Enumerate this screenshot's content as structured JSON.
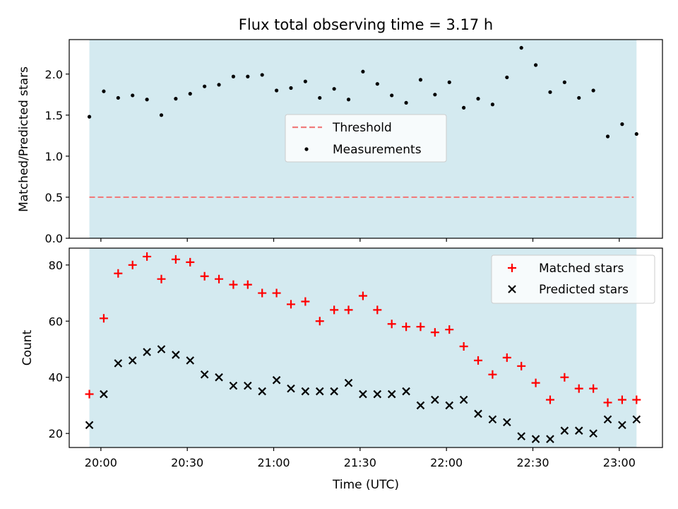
{
  "colors": {
    "shade": "#d4eaf0",
    "threshold": "#f07c7c",
    "matched": "#ff0000",
    "predicted": "#000000",
    "measurement": "#000000"
  },
  "chart_data": [
    {
      "type": "scatter",
      "title": "Flux total observing time = 3.17 h",
      "xlabel": "",
      "ylabel": "Matched/Predicted stars",
      "ylim": [
        0,
        2.42
      ],
      "yticks": [
        "0.0",
        "0.5",
        "1.0",
        "1.5",
        "2.0"
      ],
      "xlim": [
        "19:49",
        "23:15"
      ],
      "shaded_span": [
        "19:56",
        "23:06"
      ],
      "threshold": {
        "name": "Threshold",
        "value": 0.5,
        "x_range": [
          "19:56",
          "23:05"
        ]
      },
      "series": [
        {
          "name": "Measurements",
          "x": [
            "19:56",
            "20:01",
            "20:06",
            "20:11",
            "20:16",
            "20:21",
            "20:26",
            "20:31",
            "20:36",
            "20:41",
            "20:46",
            "20:51",
            "20:56",
            "21:01",
            "21:06",
            "21:11",
            "21:16",
            "21:21",
            "21:26",
            "21:31",
            "21:36",
            "21:41",
            "21:46",
            "21:51",
            "21:56",
            "22:01",
            "22:06",
            "22:11",
            "22:16",
            "22:21",
            "22:26",
            "22:31",
            "22:36",
            "22:41",
            "22:46",
            "22:51",
            "22:56",
            "23:01",
            "23:06"
          ],
          "y": [
            1.48,
            1.79,
            1.71,
            1.74,
            1.69,
            1.5,
            1.7,
            1.76,
            1.85,
            1.87,
            1.97,
            1.97,
            1.99,
            1.8,
            1.83,
            1.91,
            1.71,
            1.82,
            1.69,
            2.03,
            1.88,
            1.74,
            1.65,
            1.93,
            1.75,
            1.9,
            1.59,
            1.7,
            1.63,
            1.96,
            2.32,
            2.11,
            1.78,
            1.9,
            1.71,
            1.8,
            1.24,
            1.39,
            1.27
          ]
        }
      ]
    },
    {
      "type": "scatter",
      "title": "",
      "xlabel": "Time (UTC)",
      "ylabel": "Count",
      "ylim": [
        15,
        86
      ],
      "yticks": [
        "20",
        "40",
        "60",
        "80"
      ],
      "xlim": [
        "19:49",
        "23:15"
      ],
      "xticks": [
        "20:00",
        "20:30",
        "21:00",
        "21:30",
        "22:00",
        "22:30",
        "23:00"
      ],
      "shaded_span": [
        "19:56",
        "23:06"
      ],
      "x": [
        "19:56",
        "20:01",
        "20:06",
        "20:11",
        "20:16",
        "20:21",
        "20:26",
        "20:31",
        "20:36",
        "20:41",
        "20:46",
        "20:51",
        "20:56",
        "21:01",
        "21:06",
        "21:11",
        "21:16",
        "21:21",
        "21:26",
        "21:31",
        "21:36",
        "21:41",
        "21:46",
        "21:51",
        "21:56",
        "22:01",
        "22:06",
        "22:11",
        "22:16",
        "22:21",
        "22:26",
        "22:31",
        "22:36",
        "22:41",
        "22:46",
        "22:51",
        "22:56",
        "23:01",
        "23:06"
      ],
      "series": [
        {
          "name": "Matched stars",
          "values": [
            34,
            61,
            77,
            80,
            83,
            75,
            82,
            81,
            76,
            75,
            73,
            73,
            70,
            70,
            66,
            67,
            60,
            64,
            64,
            69,
            64,
            59,
            58,
            58,
            56,
            57,
            51,
            46,
            41,
            47,
            44,
            38,
            32,
            40,
            36,
            36,
            31,
            32,
            32
          ]
        },
        {
          "name": "Predicted stars",
          "values": [
            23,
            34,
            45,
            46,
            49,
            50,
            48,
            46,
            41,
            40,
            37,
            37,
            35,
            39,
            36,
            35,
            35,
            35,
            38,
            34,
            34,
            34,
            35,
            30,
            32,
            30,
            32,
            27,
            25,
            24,
            19,
            18,
            18,
            21,
            21,
            20,
            25,
            23,
            25
          ]
        }
      ]
    }
  ]
}
